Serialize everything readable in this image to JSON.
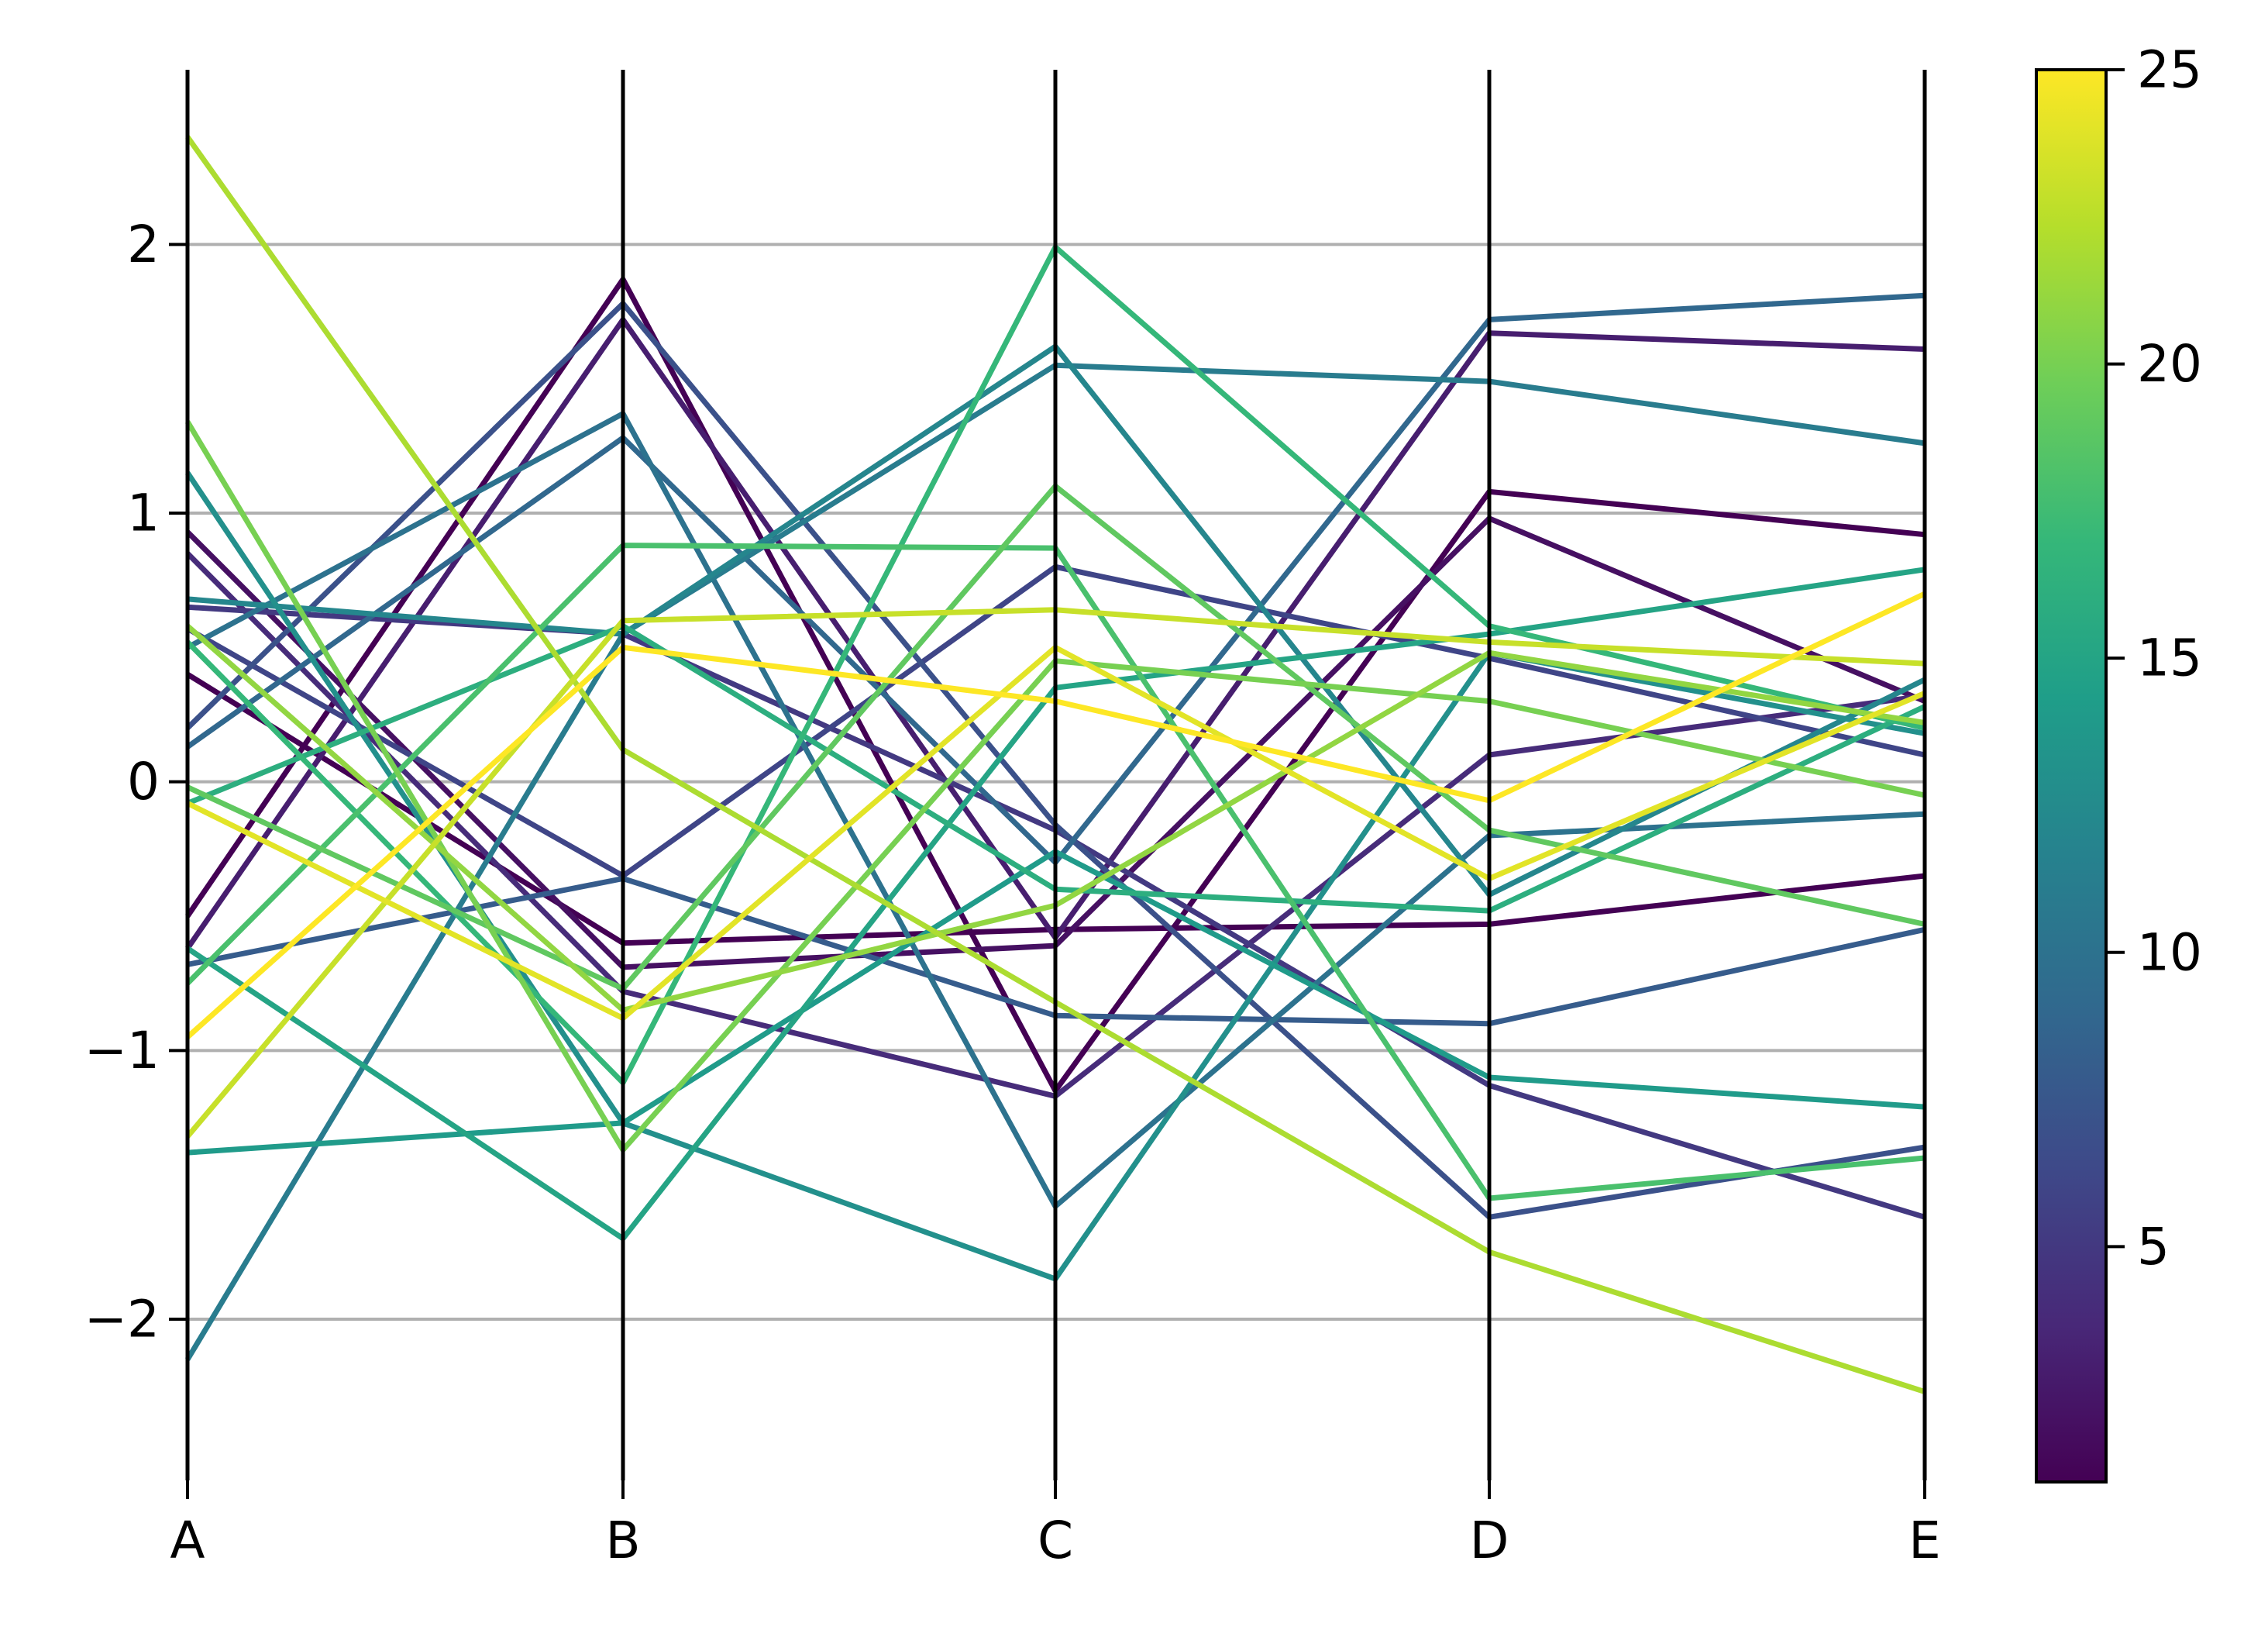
{
  "chart_data": {
    "type": "parallel_coordinates",
    "axes": [
      "A",
      "B",
      "C",
      "D",
      "E"
    ],
    "ylim": [
      -2.6,
      2.65
    ],
    "yticks": [
      -2,
      -1,
      0,
      1,
      2
    ],
    "ytick_labels": [
      "−2",
      "−1",
      "0",
      "1",
      "2"
    ],
    "grid": "horizontal",
    "colormap": "viridis",
    "colorbar": {
      "range": [
        1,
        25
      ],
      "ticks": [
        5,
        10,
        15,
        20,
        25
      ],
      "tick_labels": [
        "5",
        "10",
        "15",
        "20",
        "25"
      ],
      "stops": [
        "#440154",
        "#482878",
        "#3e4989",
        "#31688e",
        "#26828e",
        "#1f9e89",
        "#35b779",
        "#6ece58",
        "#b5de2b",
        "#fde725"
      ]
    },
    "series": [
      {
        "c": 1,
        "values": [
          -0.5,
          1.87,
          -1.15,
          1.08,
          0.92
        ]
      },
      {
        "c": 1,
        "values": [
          0.4,
          -0.6,
          -0.55,
          -0.53,
          -0.35
        ]
      },
      {
        "c": 2,
        "values": [
          0.93,
          -0.69,
          -0.61,
          0.98,
          0.3
        ]
      },
      {
        "c": 3,
        "values": [
          -0.62,
          1.72,
          -0.58,
          1.67,
          1.61
        ]
      },
      {
        "c": 4,
        "values": [
          0.85,
          -0.78,
          -1.17,
          0.1,
          0.32
        ]
      },
      {
        "c": 5,
        "values": [
          0.65,
          0.55,
          -0.18,
          -1.13,
          -1.62
        ]
      },
      {
        "c": 6,
        "values": [
          0.57,
          -0.35,
          0.8,
          0.46,
          0.1
        ]
      },
      {
        "c": 7,
        "values": [
          0.2,
          1.78,
          -0.16,
          -1.62,
          -1.36
        ]
      },
      {
        "c": 8,
        "values": [
          -0.68,
          -0.36,
          -0.87,
          -0.9,
          -0.55
        ]
      },
      {
        "c": 9,
        "values": [
          0.13,
          1.28,
          -0.3,
          1.72,
          1.81
        ]
      },
      {
        "c": 10,
        "values": [
          0.5,
          1.37,
          -1.58,
          -0.2,
          -0.12
        ]
      },
      {
        "c": 11,
        "values": [
          -2.15,
          0.55,
          1.55,
          1.49,
          1.26
        ]
      },
      {
        "c": 12,
        "values": [
          0.68,
          0.55,
          1.62,
          -0.42,
          0.38
        ]
      },
      {
        "c": 13,
        "values": [
          1.15,
          -1.27,
          -1.85,
          0.48,
          0.18
        ]
      },
      {
        "c": 14,
        "values": [
          -1.38,
          -1.27,
          -0.26,
          -1.1,
          -1.21
        ]
      },
      {
        "c": 15,
        "values": [
          -0.62,
          -1.7,
          0.35,
          0.55,
          0.79
        ]
      },
      {
        "c": 16,
        "values": [
          -0.08,
          0.58,
          -0.4,
          -0.48,
          0.28
        ]
      },
      {
        "c": 17,
        "values": [
          0.52,
          -1.12,
          1.99,
          0.58,
          0.2
        ]
      },
      {
        "c": 18,
        "values": [
          -0.75,
          0.88,
          0.87,
          -1.55,
          -1.4
        ]
      },
      {
        "c": 19,
        "values": [
          -0.02,
          -0.77,
          1.1,
          -0.18,
          -0.53
        ]
      },
      {
        "c": 20,
        "values": [
          1.34,
          -1.37,
          0.45,
          0.3,
          -0.05
        ]
      },
      {
        "c": 21,
        "values": [
          0.58,
          -0.85,
          -0.46,
          0.48,
          0.22
        ]
      },
      {
        "c": 22,
        "values": [
          2.4,
          0.12,
          -0.82,
          -1.75,
          -2.27
        ]
      },
      {
        "c": 23,
        "values": [
          -1.32,
          0.6,
          0.64,
          0.52,
          0.44
        ]
      },
      {
        "c": 24,
        "values": [
          -0.08,
          -0.88,
          0.5,
          -0.36,
          0.33
        ]
      },
      {
        "c": 25,
        "values": [
          -0.95,
          0.5,
          0.3,
          -0.07,
          0.7
        ]
      }
    ]
  }
}
